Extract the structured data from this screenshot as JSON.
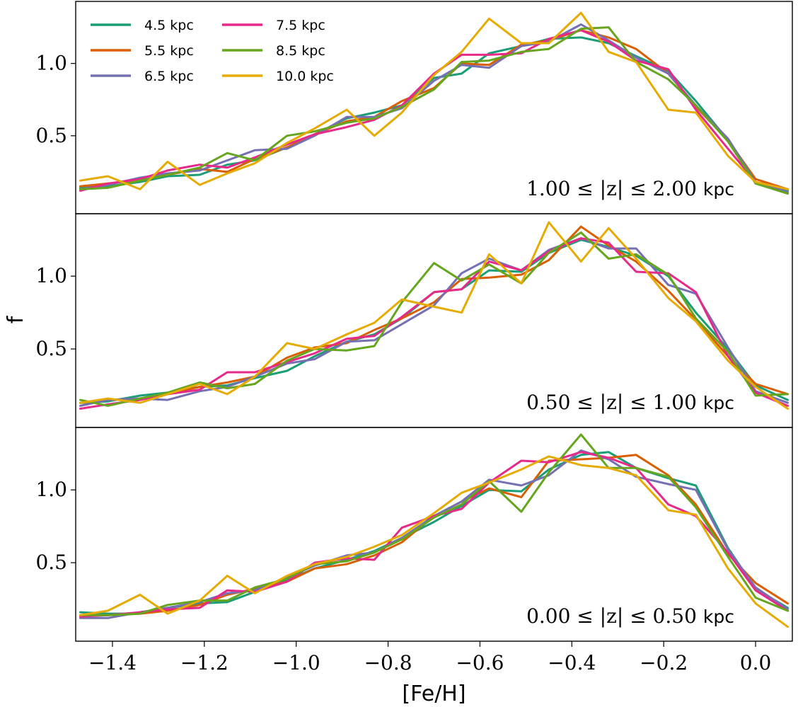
{
  "chart_data": {
    "type": "line",
    "xlabel": "[Fe/H]",
    "ylabel": "f",
    "xlim": [
      -1.48,
      0.08
    ],
    "x": [
      -1.47,
      -1.41,
      -1.34,
      -1.28,
      -1.21,
      -1.15,
      -1.09,
      -1.02,
      -0.96,
      -0.89,
      -0.83,
      -0.77,
      -0.7,
      -0.64,
      -0.58,
      -0.51,
      -0.45,
      -0.38,
      -0.32,
      -0.26,
      -0.19,
      -0.13,
      -0.06,
      0.0,
      0.07
    ],
    "x_ticks": [
      {
        "value": -1.4,
        "label": "−1.4"
      },
      {
        "value": -1.2,
        "label": "−1.2"
      },
      {
        "value": -1.0,
        "label": "−1.0"
      },
      {
        "value": -0.8,
        "label": "−0.8"
      },
      {
        "value": -0.6,
        "label": "−0.6"
      },
      {
        "value": -0.4,
        "label": "−0.4"
      },
      {
        "value": -0.2,
        "label": "−0.2"
      },
      {
        "value": 0.0,
        "label": "0.0"
      }
    ],
    "y_ticks": [
      {
        "value": 0.5,
        "label": "0.5"
      },
      {
        "value": 1.0,
        "label": "1.0"
      }
    ],
    "legend": {
      "placement": "top-left",
      "entries": [
        {
          "label": "4.5 kpc",
          "color": "#1b9e77"
        },
        {
          "label": "5.5 kpc",
          "color": "#d95f02"
        },
        {
          "label": "6.5 kpc",
          "color": "#7570b3"
        },
        {
          "label": "7.5 kpc",
          "color": "#e7298a"
        },
        {
          "label": "8.5 kpc",
          "color": "#66a61e"
        },
        {
          "label": "10.0 kpc",
          "color": "#e6ab02"
        }
      ]
    },
    "panels": [
      {
        "annotation": {
          "math": "1.00 ≤ |z| ≤ 2.00",
          "unit": "kpc"
        },
        "ylim": [
          0.0,
          1.38
        ],
        "series": [
          {
            "name": "4.5 kpc",
            "color": "#1b9e77",
            "values": [
              0.14,
              0.15,
              0.18,
              0.22,
              0.23,
              0.3,
              0.33,
              0.42,
              0.51,
              0.62,
              0.66,
              0.71,
              0.9,
              0.93,
              1.07,
              1.12,
              1.17,
              1.18,
              1.14,
              1.05,
              0.95,
              0.74,
              0.47,
              0.17,
              0.12
            ]
          },
          {
            "name": "5.5 kpc",
            "color": "#d95f02",
            "values": [
              0.15,
              0.17,
              0.19,
              0.23,
              0.27,
              0.25,
              0.34,
              0.42,
              0.51,
              0.6,
              0.63,
              0.74,
              0.83,
              1.0,
              0.99,
              1.13,
              1.16,
              1.23,
              1.18,
              1.1,
              0.93,
              0.7,
              0.47,
              0.2,
              0.13
            ]
          },
          {
            "name": "6.5 kpc",
            "color": "#7570b3",
            "values": [
              0.13,
              0.16,
              0.21,
              0.24,
              0.26,
              0.33,
              0.4,
              0.41,
              0.5,
              0.63,
              0.63,
              0.69,
              0.88,
              0.99,
              0.97,
              1.12,
              1.15,
              1.27,
              1.16,
              1.04,
              0.93,
              0.71,
              0.48,
              0.18,
              0.11
            ]
          },
          {
            "name": "7.5 kpc",
            "color": "#e7298a",
            "values": [
              0.12,
              0.17,
              0.2,
              0.26,
              0.3,
              0.28,
              0.35,
              0.44,
              0.51,
              0.56,
              0.61,
              0.71,
              0.93,
              1.06,
              1.06,
              1.07,
              1.17,
              1.23,
              1.15,
              1.02,
              0.96,
              0.68,
              0.41,
              0.18,
              0.13
            ]
          },
          {
            "name": "8.5 kpc",
            "color": "#66a61e",
            "values": [
              0.13,
              0.14,
              0.19,
              0.23,
              0.28,
              0.38,
              0.33,
              0.5,
              0.53,
              0.59,
              0.62,
              0.7,
              0.82,
              1.01,
              1.02,
              1.08,
              1.1,
              1.24,
              1.25,
              1.01,
              0.89,
              0.71,
              0.46,
              0.17,
              0.1
            ]
          },
          {
            "name": "10.0 kpc",
            "color": "#e6ab02",
            "values": [
              0.19,
              0.22,
              0.13,
              0.32,
              0.16,
              0.24,
              0.31,
              0.45,
              0.55,
              0.68,
              0.5,
              0.66,
              0.92,
              1.08,
              1.31,
              1.14,
              1.14,
              1.35,
              1.08,
              1.01,
              0.68,
              0.66,
              0.36,
              0.18,
              0.13
            ]
          }
        ]
      },
      {
        "annotation": {
          "math": "0.50 ≤ |z| ≤ 1.00",
          "unit": "kpc"
        },
        "ylim": [
          0.0,
          1.38
        ],
        "series": [
          {
            "name": "4.5 kpc",
            "color": "#1b9e77",
            "values": [
              0.13,
              0.14,
              0.18,
              0.2,
              0.24,
              0.25,
              0.3,
              0.35,
              0.45,
              0.55,
              0.6,
              0.71,
              0.89,
              0.91,
              1.04,
              1.03,
              1.16,
              1.25,
              1.2,
              1.14,
              1.0,
              0.75,
              0.5,
              0.25,
              0.15
            ]
          },
          {
            "name": "5.5 kpc",
            "color": "#d95f02",
            "values": [
              0.13,
              0.15,
              0.16,
              0.19,
              0.24,
              0.27,
              0.31,
              0.44,
              0.51,
              0.54,
              0.63,
              0.71,
              0.82,
              0.98,
              0.99,
              1.01,
              1.11,
              1.34,
              1.21,
              1.1,
              0.9,
              0.7,
              0.45,
              0.26,
              0.19
            ]
          },
          {
            "name": "6.5 kpc",
            "color": "#7570b3",
            "values": [
              0.11,
              0.15,
              0.16,
              0.15,
              0.21,
              0.24,
              0.31,
              0.4,
              0.43,
              0.55,
              0.56,
              0.67,
              0.8,
              1.02,
              1.12,
              1.04,
              1.18,
              1.26,
              1.19,
              1.19,
              0.94,
              0.88,
              0.51,
              0.21,
              0.13
            ]
          },
          {
            "name": "7.5 kpc",
            "color": "#e7298a",
            "values": [
              0.09,
              0.12,
              0.15,
              0.19,
              0.22,
              0.34,
              0.34,
              0.41,
              0.47,
              0.57,
              0.59,
              0.72,
              0.89,
              0.91,
              1.1,
              1.04,
              1.17,
              1.26,
              1.23,
              1.03,
              1.02,
              0.89,
              0.45,
              0.2,
              0.11
            ]
          },
          {
            "name": "8.5 kpc",
            "color": "#66a61e",
            "values": [
              0.15,
              0.11,
              0.16,
              0.2,
              0.27,
              0.23,
              0.26,
              0.42,
              0.5,
              0.49,
              0.52,
              0.82,
              1.09,
              0.97,
              1.08,
              0.95,
              1.16,
              1.3,
              1.12,
              1.15,
              1.01,
              0.71,
              0.48,
              0.18,
              0.19
            ]
          },
          {
            "name": "10.0 kpc",
            "color": "#e6ab02",
            "values": [
              0.13,
              0.16,
              0.13,
              0.19,
              0.26,
              0.19,
              0.31,
              0.54,
              0.5,
              0.6,
              0.68,
              0.84,
              0.79,
              0.75,
              1.15,
              0.95,
              1.37,
              1.1,
              1.33,
              1.12,
              0.85,
              0.69,
              0.42,
              0.24,
              0.09
            ]
          }
        ]
      },
      {
        "annotation": {
          "math": "0.00 ≤ |z| ≤ 0.50",
          "unit": "kpc"
        },
        "ylim": [
          0.0,
          1.38
        ],
        "series": [
          {
            "name": "4.5 kpc",
            "color": "#1b9e77",
            "values": [
              0.16,
              0.15,
              0.15,
              0.19,
              0.22,
              0.23,
              0.3,
              0.38,
              0.46,
              0.52,
              0.58,
              0.67,
              0.78,
              0.89,
              1.0,
              0.99,
              1.14,
              1.24,
              1.26,
              1.15,
              1.08,
              1.03,
              0.6,
              0.32,
              0.19
            ]
          },
          {
            "name": "5.5 kpc",
            "color": "#d95f02",
            "values": [
              0.14,
              0.14,
              0.15,
              0.17,
              0.21,
              0.28,
              0.32,
              0.37,
              0.46,
              0.49,
              0.55,
              0.64,
              0.82,
              0.92,
              1.01,
              0.95,
              1.2,
              1.21,
              1.22,
              1.24,
              1.1,
              0.9,
              0.56,
              0.36,
              0.22
            ]
          },
          {
            "name": "6.5 kpc",
            "color": "#7570b3",
            "values": [
              0.12,
              0.12,
              0.16,
              0.19,
              0.23,
              0.29,
              0.31,
              0.4,
              0.48,
              0.55,
              0.57,
              0.67,
              0.82,
              0.92,
              1.07,
              1.03,
              1.1,
              1.27,
              1.21,
              1.09,
              1.04,
              1.0,
              0.59,
              0.33,
              0.18
            ]
          },
          {
            "name": "7.5 kpc",
            "color": "#e7298a",
            "values": [
              0.13,
              0.14,
              0.16,
              0.18,
              0.19,
              0.31,
              0.3,
              0.37,
              0.5,
              0.53,
              0.52,
              0.74,
              0.82,
              0.87,
              1.05,
              1.2,
              1.19,
              1.26,
              1.22,
              1.15,
              0.9,
              0.82,
              0.57,
              0.31,
              0.17
            ]
          },
          {
            "name": "8.5 kpc",
            "color": "#66a61e",
            "values": [
              0.14,
              0.14,
              0.15,
              0.21,
              0.24,
              0.24,
              0.33,
              0.39,
              0.49,
              0.51,
              0.57,
              0.66,
              0.81,
              0.9,
              1.06,
              0.85,
              1.12,
              1.38,
              1.15,
              1.15,
              1.09,
              0.88,
              0.54,
              0.26,
              0.17
            ]
          },
          {
            "name": "10.0 kpc",
            "color": "#e6ab02",
            "values": [
              0.14,
              0.17,
              0.28,
              0.15,
              0.24,
              0.41,
              0.29,
              0.41,
              0.49,
              0.54,
              0.61,
              0.69,
              0.84,
              0.98,
              1.05,
              1.14,
              1.23,
              1.17,
              1.15,
              1.1,
              0.86,
              0.83,
              0.46,
              0.22,
              0.06
            ]
          }
        ]
      }
    ]
  }
}
